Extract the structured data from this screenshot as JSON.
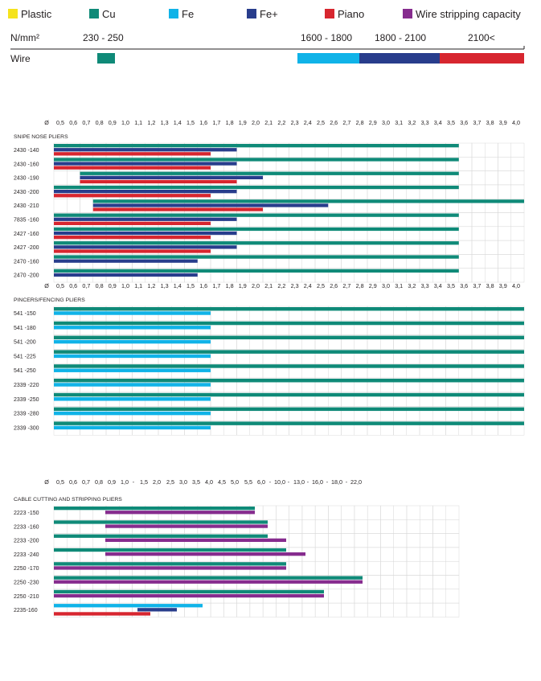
{
  "legend": {
    "items": [
      {
        "label": "Plastic",
        "color": "#f5e31c"
      },
      {
        "label": "Cu",
        "color": "#0f8a78"
      },
      {
        "label": "Fe",
        "color": "#10b3e8"
      },
      {
        "label": "Fe+",
        "color": "#283d8c"
      },
      {
        "label": "Piano",
        "color": "#d7262f"
      },
      {
        "label": "Wire stripping capacity",
        "color": "#862c8e"
      }
    ]
  },
  "header": {
    "unit": "N/mm²",
    "range_cu": "230 - 250",
    "range_fe": "1600 - 1800",
    "range_feplus": "1800 - 2100",
    "range_piano": "2100<",
    "wire_label": "Wire"
  },
  "chart_data": [
    {
      "type": "table",
      "title": "SNIPE NOSE PLIERS",
      "ticks": [
        "Ø",
        "0,5",
        "0,6",
        "0,7",
        "0,8",
        "0,9",
        "1,0",
        "1,1",
        "1,2",
        "1,3",
        "1,4",
        "1,5",
        "1,6",
        "1,7",
        "1,8",
        "1,9",
        "2,0",
        "2,1",
        "2,2",
        "2,3",
        "2,4",
        "2,5",
        "2,6",
        "2,7",
        "2,8",
        "2,9",
        "3,0",
        "3,1",
        "3,2",
        "3,3",
        "3,4",
        "3,5",
        "3,6",
        "3,7",
        "3,8",
        "3,9",
        "4,0"
      ],
      "rows": [
        {
          "model": "2430 -140",
          "bars": [
            {
              "material": "Cu",
              "to": "3,5"
            },
            {
              "material": "Fe+",
              "to": "1,8"
            },
            {
              "material": "Piano",
              "to": "1,6"
            }
          ]
        },
        {
          "model": "2430 -160",
          "bars": [
            {
              "material": "Cu",
              "to": "3,5"
            },
            {
              "material": "Fe+",
              "to": "1,8"
            },
            {
              "material": "Piano",
              "to": "1,6"
            }
          ]
        },
        {
          "model": "2430 -190",
          "bars": [
            {
              "material": "Cu",
              "from": "0,7",
              "to": "3,5"
            },
            {
              "material": "Fe+",
              "from": "0,7",
              "to": "2,0"
            },
            {
              "material": "Piano",
              "from": "0,7",
              "to": "1,8"
            }
          ]
        },
        {
          "model": "2430 -200",
          "bars": [
            {
              "material": "Cu",
              "to": "3,5"
            },
            {
              "material": "Fe+",
              "to": "1,8"
            },
            {
              "material": "Piano",
              "to": "1,6"
            }
          ]
        },
        {
          "model": "2430 -210",
          "bars": [
            {
              "material": "Cu",
              "from": "0,8",
              "to": "4,0"
            },
            {
              "material": "Fe+",
              "from": "0,8",
              "to": "2,5"
            },
            {
              "material": "Piano",
              "from": "0,8",
              "to": "2,0"
            }
          ]
        },
        {
          "model": "7835 -160",
          "bars": [
            {
              "material": "Cu",
              "to": "3,5"
            },
            {
              "material": "Fe+",
              "to": "1,8"
            },
            {
              "material": "Piano",
              "to": "1,6"
            }
          ]
        },
        {
          "model": "2427 -160",
          "bars": [
            {
              "material": "Cu",
              "to": "3,5"
            },
            {
              "material": "Fe+",
              "to": "1,8"
            },
            {
              "material": "Piano",
              "to": "1,6"
            }
          ]
        },
        {
          "model": "2427 -200",
          "bars": [
            {
              "material": "Cu",
              "to": "3,5"
            },
            {
              "material": "Fe+",
              "to": "1,8"
            },
            {
              "material": "Piano",
              "to": "1,6"
            }
          ]
        },
        {
          "model": "2470 -160",
          "bars": [
            {
              "material": "Cu",
              "to": "3,5"
            },
            {
              "material": "Fe+",
              "to": "1,5"
            }
          ]
        },
        {
          "model": "2470 -200",
          "bars": [
            {
              "material": "Cu",
              "to": "3,5"
            },
            {
              "material": "Fe+",
              "to": "1,5"
            }
          ]
        }
      ]
    },
    {
      "type": "table",
      "title": "PINCERS/FENCING PLIERS",
      "ticks": [
        "Ø",
        "0,5",
        "0,6",
        "0,7",
        "0,8",
        "0,9",
        "1,0",
        "1,1",
        "1,2",
        "1,3",
        "1,4",
        "1,5",
        "1,6",
        "1,7",
        "1,8",
        "1,9",
        "2,0",
        "2,1",
        "2,2",
        "2,3",
        "2,4",
        "2,5",
        "2,6",
        "2,7",
        "2,8",
        "2,9",
        "3,0",
        "3,1",
        "3,2",
        "3,3",
        "3,4",
        "3,5",
        "3,6",
        "3,7",
        "3,8",
        "3,9",
        "4,0"
      ],
      "rows": [
        {
          "model": "541 -150",
          "bars": [
            {
              "material": "Cu",
              "to": "4,0"
            },
            {
              "material": "Fe",
              "to": "1,6"
            }
          ]
        },
        {
          "model": "541 -180",
          "bars": [
            {
              "material": "Cu",
              "to": "4,0"
            },
            {
              "material": "Fe",
              "to": "1,6"
            }
          ]
        },
        {
          "model": "541 -200",
          "bars": [
            {
              "material": "Cu",
              "to": "4,0"
            },
            {
              "material": "Fe",
              "to": "1,6"
            }
          ]
        },
        {
          "model": "541 -225",
          "bars": [
            {
              "material": "Cu",
              "to": "4,0"
            },
            {
              "material": "Fe",
              "to": "1,6"
            }
          ]
        },
        {
          "model": "541 -250",
          "bars": [
            {
              "material": "Cu",
              "to": "4,0"
            },
            {
              "material": "Fe",
              "to": "1,6"
            }
          ]
        },
        {
          "model": "2339 -220",
          "bars": [
            {
              "material": "Cu",
              "to": "4,0"
            },
            {
              "material": "Fe",
              "to": "1,6"
            }
          ]
        },
        {
          "model": "2339 -250",
          "bars": [
            {
              "material": "Cu",
              "to": "4,0"
            },
            {
              "material": "Fe",
              "to": "1,6"
            }
          ]
        },
        {
          "model": "2339 -280",
          "bars": [
            {
              "material": "Cu",
              "to": "4,0"
            },
            {
              "material": "Fe",
              "to": "1,6"
            }
          ]
        },
        {
          "model": "2339 -300",
          "bars": [
            {
              "material": "Cu",
              "to": "4,0"
            },
            {
              "material": "Fe",
              "to": "1,6"
            }
          ]
        }
      ]
    },
    {
      "type": "table",
      "title": "CABLE CUTTING AND STRIPPING PLIERS",
      "ticks": [
        "Ø",
        "0,5",
        "0,6",
        "0,7",
        "0,8",
        "0,9",
        "1,0",
        "-",
        "1,5",
        "2,0",
        "2,5",
        "3,0",
        "3,5",
        "4,0",
        "4,5",
        "5,0",
        "5,5",
        "6,0",
        "-",
        "10,0",
        "-",
        "13,0",
        "-",
        "16,0",
        "-",
        "18,0",
        "-",
        "22,0"
      ],
      "rows": [
        {
          "model": "2223 -150",
          "bars": [
            {
              "material": "Cu",
              "to": "5,5"
            },
            {
              "material": "Wire stripping capacity",
              "from": "0,9",
              "to": "5,5"
            }
          ]
        },
        {
          "model": "2233 -160",
          "bars": [
            {
              "material": "Cu",
              "to": "6,0"
            },
            {
              "material": "Wire stripping capacity",
              "from": "0,9",
              "to": "6,0"
            }
          ]
        },
        {
          "model": "2233 -200",
          "bars": [
            {
              "material": "Cu",
              "to": "6,0"
            },
            {
              "material": "Wire stripping capacity",
              "from": "0,9",
              "to": "10,0"
            }
          ]
        },
        {
          "model": "2233 -240",
          "bars": [
            {
              "material": "Cu",
              "to": "10,0"
            },
            {
              "material": "Wire stripping capacity",
              "from": "0,9",
              "to": "13,0"
            }
          ]
        },
        {
          "model": "2250 -170",
          "bars": [
            {
              "material": "Cu",
              "to": "10,0"
            },
            {
              "material": "Wire stripping capacity",
              "to": "10,0"
            }
          ]
        },
        {
          "model": "2250 -230",
          "bars": [
            {
              "material": "Cu",
              "to": "22,0"
            },
            {
              "material": "Wire stripping capacity",
              "to": "22,0"
            }
          ]
        },
        {
          "model": "2250 -210",
          "bars": [
            {
              "material": "Cu",
              "to": "16,0"
            },
            {
              "material": "Wire stripping capacity",
              "to": "16,0"
            }
          ]
        },
        {
          "model": "2235-160",
          "bars": [
            {
              "material": "Fe",
              "to": "3,5"
            },
            {
              "material": "Fe+",
              "from": "1,5",
              "to": "2,5"
            },
            {
              "material": "Piano",
              "to": "1,5"
            }
          ]
        }
      ]
    }
  ]
}
